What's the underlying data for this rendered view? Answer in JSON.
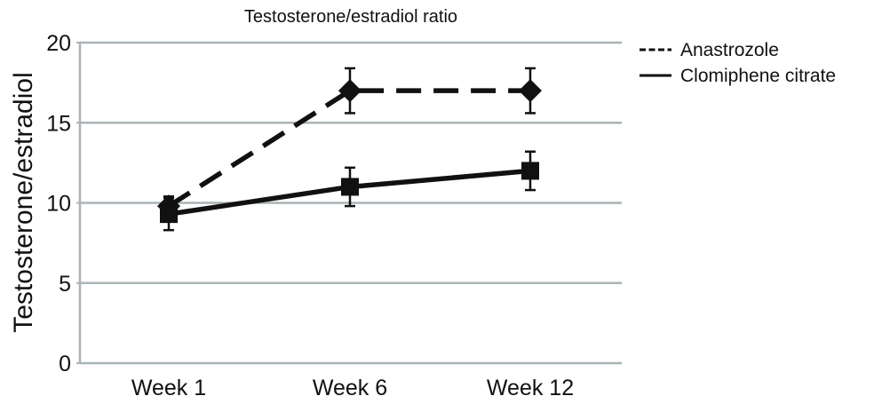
{
  "chart_data": {
    "type": "line",
    "title": "Testosterone/estradiol ratio",
    "xlabel": "",
    "ylabel": "Testosterone/estradiol",
    "categories": [
      "Week 1",
      "Week 6",
      "Week 12"
    ],
    "ylim": [
      0,
      20
    ],
    "yticks": [
      0,
      5,
      10,
      15,
      20
    ],
    "grid": true,
    "legend_position": "top-right",
    "series": [
      {
        "name": "Anastrozole",
        "values": [
          9.8,
          17,
          17
        ],
        "error": [
          0.6,
          1.4,
          1.4
        ],
        "line_style": "dashed",
        "marker": "diamond",
        "color": "#111111"
      },
      {
        "name": "Clomiphene citrate",
        "values": [
          9.3,
          11,
          12
        ],
        "error": [
          1.0,
          1.2,
          1.2
        ],
        "line_style": "solid",
        "marker": "square",
        "color": "#111111"
      }
    ],
    "colors": {
      "grid": "#a9b4b6",
      "axis": "#a9b4b6",
      "ink": "#111111"
    }
  }
}
